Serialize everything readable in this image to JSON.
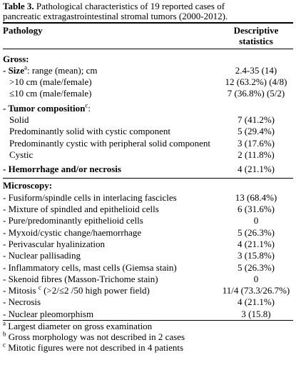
{
  "caption": {
    "label": "Table 3.",
    "text_line1": " Pathological characteristics of 19 reported cases of",
    "text_line2": "pancreatic extragastrointestinal stromal tumors (2000-2012)."
  },
  "header": {
    "left": "Pathology",
    "right_line1": "Descriptive",
    "right_line2": "statistics"
  },
  "gross": {
    "title": "Gross:",
    "size_label": "- Size",
    "size_sup": "a",
    "size_rest": ": range (mean); cm",
    "size_val": "2.4-35 (14)",
    "gt10_label": ">10 cm (male/female)",
    "gt10_val": "12 (63.2%) (4/8)",
    "le10_label": "≤10 cm (male/female)",
    "le10_val": "7 (36.8%) (5/2)",
    "comp_label": "- Tumor composition",
    "comp_sup": "c",
    "comp_rest": ":",
    "comp_rows": [
      {
        "label": "Solid",
        "val": "7 (41.2%)"
      },
      {
        "label": "Predominantly solid with cystic component",
        "val": "5 (29.4%)"
      },
      {
        "label": "Predominantly cystic with peripheral solid component",
        "val": "3 (17.6%)"
      },
      {
        "label": "Cystic",
        "val": "2 (11.8%)"
      }
    ],
    "hem_label": "- Hemorrhage and/or necrosis",
    "hem_val": "4 (21.1%)"
  },
  "micro": {
    "title": "Microscopy:",
    "rows": [
      {
        "label": "- Fusiform/spindle cells in interlacing fascicles",
        "val": "13 (68.4%)"
      },
      {
        "label": "- Mixture of spindled and epithelioid cells",
        "val": "6 (31.6%)"
      },
      {
        "label": "- Pure/predominantly epithelioid cells",
        "val": "0"
      },
      {
        "label": "- Myxoid/cystic change/haemorrhage",
        "val": "5 (26.3%)"
      },
      {
        "label": "- Perivascular hyalinization",
        "val": "4 (21.1%)"
      },
      {
        "label": "- Nuclear pallisading",
        "val": "3 (15.8%)"
      },
      {
        "label": "- Inflammatory cells, mast cells (Giemsa stain)",
        "val": "5 (26.3%)"
      },
      {
        "label": "- Skenoid fibres (Masson-Trichome stain)",
        "val": "0"
      }
    ],
    "mitosis_label": "- Mitosis",
    "mitosis_sup": "c",
    "mitosis_rest": " (>2/≤2 /50 high power field)",
    "mitosis_val": "11/4 (73.3/26.7%)",
    "rows2": [
      {
        "label": "- Necrosis",
        "val": "4 (21.1%)"
      },
      {
        "label": "- Nuclear pleomorphism",
        "val": "3 (15.8)"
      }
    ]
  },
  "footnotes": [
    {
      "mark": "a",
      "text": " Largest diameter on gross examination"
    },
    {
      "mark": "b",
      "text": " Gross morphology was not described in 2 cases"
    },
    {
      "mark": "c",
      "text": " Mitotic figures were not described in 4 patients"
    }
  ]
}
